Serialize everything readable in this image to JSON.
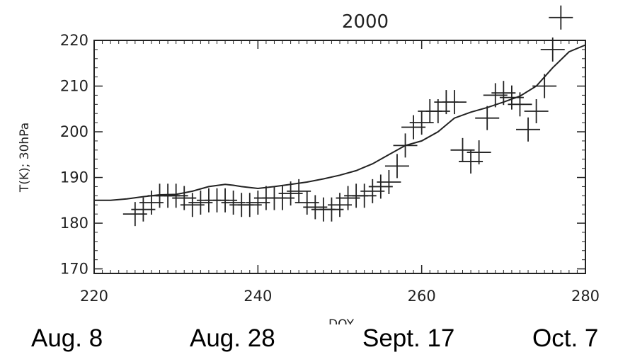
{
  "chart_data": {
    "type": "scatter",
    "title": "2000",
    "xlabel": "DOY",
    "ylabel": "T(K); 30hPa",
    "xlim": [
      220,
      280
    ],
    "ylim": [
      169,
      220
    ],
    "xticks": [
      220,
      240,
      260,
      280
    ],
    "yticks": [
      170,
      180,
      190,
      200,
      210,
      220
    ],
    "grid": false,
    "date_labels": [
      "Aug. 8",
      "Aug. 28",
      "Sept. 17",
      "Oct. 7"
    ],
    "series": [
      {
        "style": "line",
        "x": [
          220,
          222,
          224,
          226,
          228,
          230,
          232,
          234,
          236,
          237,
          238,
          240,
          242,
          244,
          246,
          248,
          250,
          252,
          254,
          256,
          258,
          260,
          262,
          264,
          266,
          268,
          270,
          272,
          274,
          276,
          278,
          280
        ],
        "y": [
          185,
          185,
          185.3,
          185.8,
          186.2,
          186.3,
          187,
          188,
          188.5,
          188.3,
          188,
          187.6,
          188,
          188.5,
          189,
          189.7,
          190.5,
          191.5,
          193,
          195,
          197,
          198,
          200,
          203,
          204.3,
          205.3,
          206.5,
          207.8,
          210,
          214,
          217.5,
          219
        ]
      },
      {
        "style": "markers",
        "marker": "plus",
        "x": [
          225,
          226,
          227,
          228,
          229,
          230,
          231,
          232,
          233,
          234,
          235,
          236,
          237,
          238,
          239,
          240,
          241,
          242,
          243,
          244,
          245,
          246,
          247,
          248,
          249,
          250,
          251,
          252,
          253,
          254,
          255,
          256,
          257,
          258,
          259,
          260,
          261,
          262,
          263,
          264,
          265,
          266,
          267,
          268,
          269,
          270,
          271,
          272,
          273,
          274,
          275,
          276,
          277
        ],
        "y": [
          182,
          183,
          184.5,
          186,
          186,
          186,
          185.5,
          184,
          184.5,
          185,
          185,
          185,
          184.5,
          184,
          184,
          184.5,
          185.5,
          185.5,
          185.5,
          186.5,
          187,
          184.5,
          183.5,
          183,
          183,
          184,
          185.5,
          186,
          186,
          187,
          188,
          189,
          192.5,
          197,
          201,
          202,
          204.5,
          204.5,
          206.5,
          206.5,
          196,
          193.5,
          195.5,
          203,
          208,
          208.5,
          207.5,
          206,
          200.5,
          204.5,
          210,
          218,
          225
        ]
      }
    ]
  }
}
